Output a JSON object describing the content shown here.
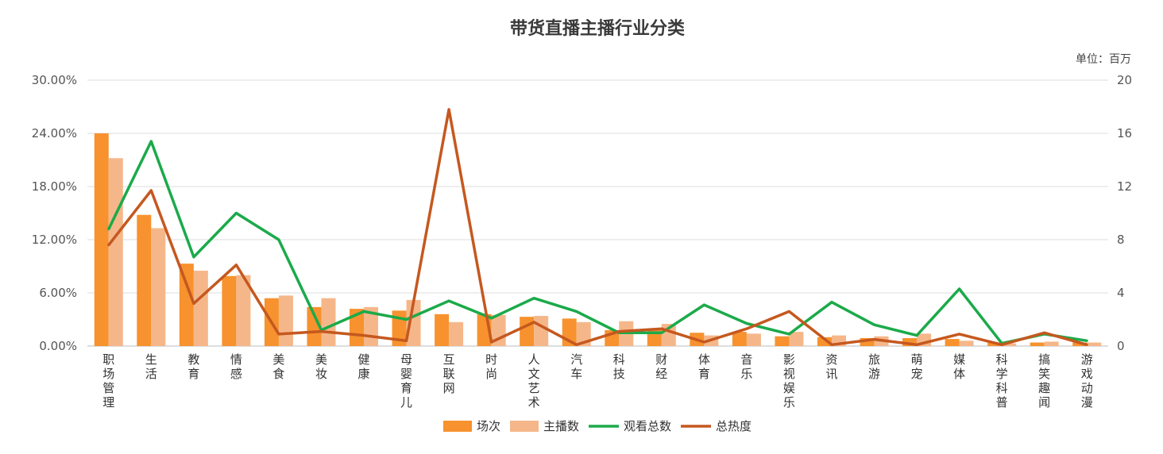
{
  "chart_data": {
    "type": "bar",
    "title": "带货直播主播行业分类",
    "unit_label": "单位：百万",
    "categories": [
      "职场管理",
      "生活",
      "教育",
      "情感",
      "美食",
      "美妆",
      "健康",
      "母婴育儿",
      "互联网",
      "时尚",
      "人文艺术",
      "汽车",
      "科技",
      "财经",
      "体育",
      "音乐",
      "影视娱乐",
      "资讯",
      "旅游",
      "萌宠",
      "媒体",
      "科学科普",
      "搞笑趣闻",
      "游戏动漫"
    ],
    "left_axis": {
      "min": 0,
      "max": 0.3,
      "ticks": [
        "0.00%",
        "6.00%",
        "12.00%",
        "18.00%",
        "24.00%",
        "30.00%"
      ]
    },
    "right_axis": {
      "min": 0,
      "max": 20,
      "ticks": [
        "0",
        "4",
        "8",
        "12",
        "16",
        "20"
      ]
    },
    "series": [
      {
        "name": "场次",
        "type": "bar",
        "axis": "left",
        "color": "#F7922E",
        "values": [
          0.24,
          0.148,
          0.093,
          0.079,
          0.054,
          0.044,
          0.042,
          0.04,
          0.036,
          0.036,
          0.033,
          0.031,
          0.018,
          0.018,
          0.015,
          0.016,
          0.011,
          0.01,
          0.009,
          0.009,
          0.008,
          0.004,
          0.004,
          0.004
        ]
      },
      {
        "name": "主播数",
        "type": "bar",
        "axis": "left",
        "color": "#F5B78A",
        "values": [
          0.212,
          0.133,
          0.085,
          0.08,
          0.057,
          0.054,
          0.044,
          0.052,
          0.027,
          0.035,
          0.034,
          0.027,
          0.028,
          0.025,
          0.012,
          0.014,
          0.016,
          0.012,
          0.011,
          0.014,
          0.006,
          0.003,
          0.005,
          0.004
        ]
      },
      {
        "name": "观看总数",
        "type": "line",
        "axis": "right",
        "color": "#1BAA4A",
        "values": [
          8.8,
          15.4,
          6.7,
          10.0,
          8.0,
          1.2,
          2.6,
          2.0,
          3.4,
          2.1,
          3.6,
          2.6,
          1.0,
          1.0,
          3.1,
          1.7,
          0.9,
          3.3,
          1.6,
          0.8,
          4.3,
          0.2,
          0.9,
          0.4
        ]
      },
      {
        "name": "总热度",
        "type": "line",
        "axis": "right",
        "color": "#C5581F",
        "values": [
          7.6,
          11.7,
          3.2,
          6.1,
          0.9,
          1.1,
          0.8,
          0.4,
          17.8,
          0.3,
          1.8,
          0.1,
          1.1,
          1.3,
          0.3,
          1.3,
          2.6,
          0.1,
          0.5,
          0.1,
          0.9,
          0.1,
          1.0,
          0.1
        ]
      }
    ],
    "grid": true,
    "legend_position": "bottom"
  }
}
